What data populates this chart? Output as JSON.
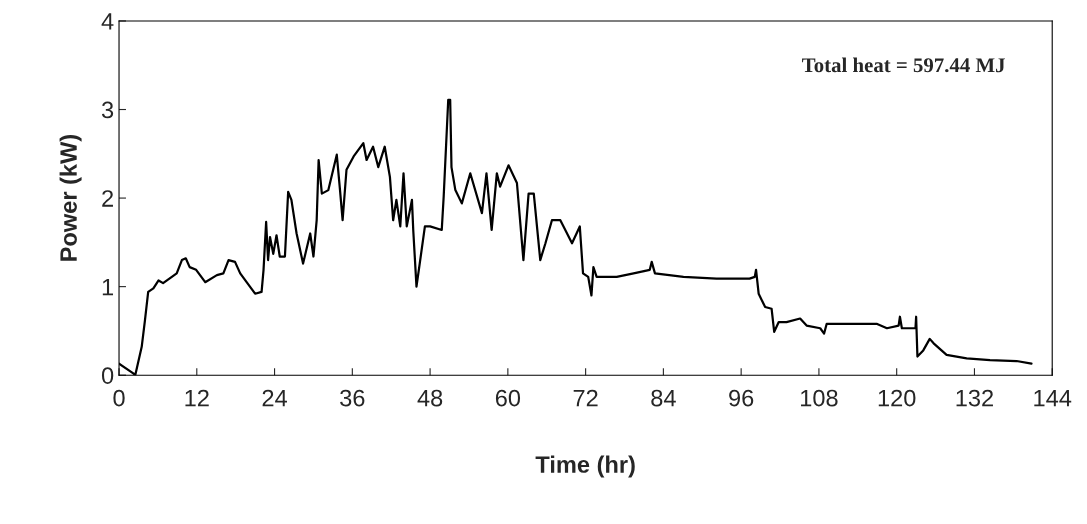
{
  "chart_data": {
    "type": "line",
    "xlabel": "Time (hr)",
    "ylabel": "Power (kW)",
    "annotations": [
      "Total heat = 597.44 MJ"
    ],
    "xlim": [
      0,
      144
    ],
    "xticks": [
      0,
      12,
      24,
      36,
      48,
      60,
      72,
      84,
      96,
      108,
      120,
      132,
      144
    ],
    "ylim": [
      0,
      4
    ],
    "yticks": [
      0,
      1,
      2,
      3,
      4
    ],
    "grid": false,
    "marker": "none",
    "line_style": "solid",
    "series": [
      {
        "color": "#000000",
        "x": [
          0,
          2.2,
          2.5,
          3.5,
          4.0,
          4.5,
          5.3,
          6.1,
          6.8,
          8.9,
          9.7,
          10.3,
          10.9,
          11.9,
          13.3,
          15.1,
          16.1,
          16.9,
          17.9,
          18.7,
          20.2,
          21.0,
          22.0,
          22.3,
          22.7,
          23.0,
          23.3,
          23.8,
          24.3,
          24.8,
          25.6,
          26.1,
          26.6,
          27.4,
          28.4,
          29.5,
          30.0,
          30.5,
          30.8,
          31.3,
          32.3,
          33.6,
          34.1,
          34.5,
          35.1,
          36.2,
          37.7,
          38.2,
          39.2,
          40.0,
          41.0,
          41.8,
          42.3,
          42.8,
          43.4,
          43.9,
          44.4,
          45.2,
          45.4,
          45.9,
          46.4,
          47.2,
          48.0,
          49.8,
          50.1,
          50.8,
          51.1,
          51.3,
          51.9,
          52.9,
          54.2,
          56.0,
          56.7,
          57.5,
          58.3,
          58.8,
          60.1,
          61.4,
          62.4,
          63.2,
          64.0,
          65.0,
          65.8,
          66.8,
          68.1,
          69.9,
          71.1,
          71.6,
          72.4,
          72.9,
          73.2,
          73.7,
          76.8,
          79.4,
          81.9,
          82.2,
          82.7,
          87.1,
          92.2,
          97.3,
          98.1,
          98.3,
          98.7,
          99.7,
          100.7,
          101.1,
          101.8,
          103.0,
          105.1,
          106.1,
          108.2,
          108.8,
          109.2,
          112.8,
          116.9,
          118.5,
          120.3,
          120.5,
          120.8,
          122.9,
          123.0,
          123.2,
          124.1,
          125.1,
          125.7,
          127.7,
          130.8,
          134.4,
          138.5,
          140.8
        ],
        "values": [
          0.13,
          0.02,
          0,
          0.32,
          0.62,
          0.94,
          0.98,
          1.07,
          1.04,
          1.15,
          1.3,
          1.32,
          1.22,
          1.19,
          1.05,
          1.13,
          1.15,
          1.3,
          1.28,
          1.15,
          1.0,
          0.92,
          0.94,
          1.19,
          1.73,
          1.3,
          1.56,
          1.37,
          1.58,
          1.34,
          1.34,
          2.07,
          1.98,
          1.6,
          1.26,
          1.6,
          1.34,
          1.75,
          2.43,
          2.05,
          2.09,
          2.49,
          2.09,
          1.75,
          2.32,
          2.47,
          2.62,
          2.43,
          2.58,
          2.35,
          2.58,
          2.24,
          1.75,
          1.98,
          1.68,
          2.28,
          1.68,
          1.98,
          1.64,
          1.0,
          1.26,
          1.68,
          1.68,
          1.64,
          2.02,
          3.11,
          3.11,
          2.35,
          2.09,
          1.94,
          2.28,
          1.83,
          2.28,
          1.64,
          2.28,
          2.13,
          2.37,
          2.17,
          1.3,
          2.05,
          2.05,
          1.3,
          1.49,
          1.75,
          1.75,
          1.49,
          1.68,
          1.15,
          1.11,
          0.9,
          1.22,
          1.11,
          1.11,
          1.15,
          1.19,
          1.28,
          1.15,
          1.11,
          1.09,
          1.09,
          1.11,
          1.19,
          0.92,
          0.77,
          0.75,
          0.49,
          0.6,
          0.6,
          0.64,
          0.56,
          0.53,
          0.47,
          0.58,
          0.58,
          0.58,
          0.53,
          0.56,
          0.66,
          0.53,
          0.53,
          0.66,
          0.21,
          0.28,
          0.41,
          0.36,
          0.23,
          0.19,
          0.17,
          0.16,
          0.13
        ]
      }
    ]
  }
}
